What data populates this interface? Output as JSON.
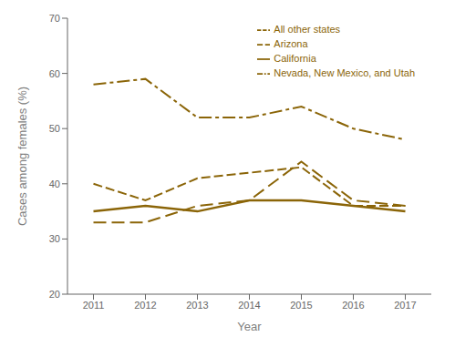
{
  "chart_data": {
    "type": "line",
    "x": [
      2011,
      2012,
      2013,
      2014,
      2015,
      2016,
      2017
    ],
    "series": [
      {
        "name": "Arizona",
        "color": "#8B6508",
        "line_style": "longdash",
        "values": [
          33,
          33,
          36,
          37,
          44,
          37,
          36
        ]
      },
      {
        "name": "Nevada, New Mexico, and Utah",
        "color": "#8B6508",
        "line_style": "dashdot",
        "values": [
          58,
          59,
          52,
          52,
          54,
          50,
          48
        ]
      },
      {
        "name": "California",
        "color": "#8B6508",
        "line_style": "solid",
        "values": [
          35,
          36,
          35,
          37,
          37,
          36,
          35
        ]
      },
      {
        "name": "All other states",
        "color": "#8B6508",
        "line_style": "dash",
        "values": [
          40,
          37,
          41,
          42,
          43,
          36,
          36
        ]
      }
    ],
    "xlim": [
      2010.5,
      2017.5
    ],
    "xticks": [
      2011,
      2012,
      2013,
      2014,
      2015,
      2016,
      2017
    ],
    "ylim": [
      20,
      70
    ],
    "yticks": [
      20,
      30,
      40,
      50,
      60,
      70
    ],
    "xlabel": "Year",
    "ylabel": "Cases among females (%)",
    "grid": false,
    "legend": "upper right"
  }
}
